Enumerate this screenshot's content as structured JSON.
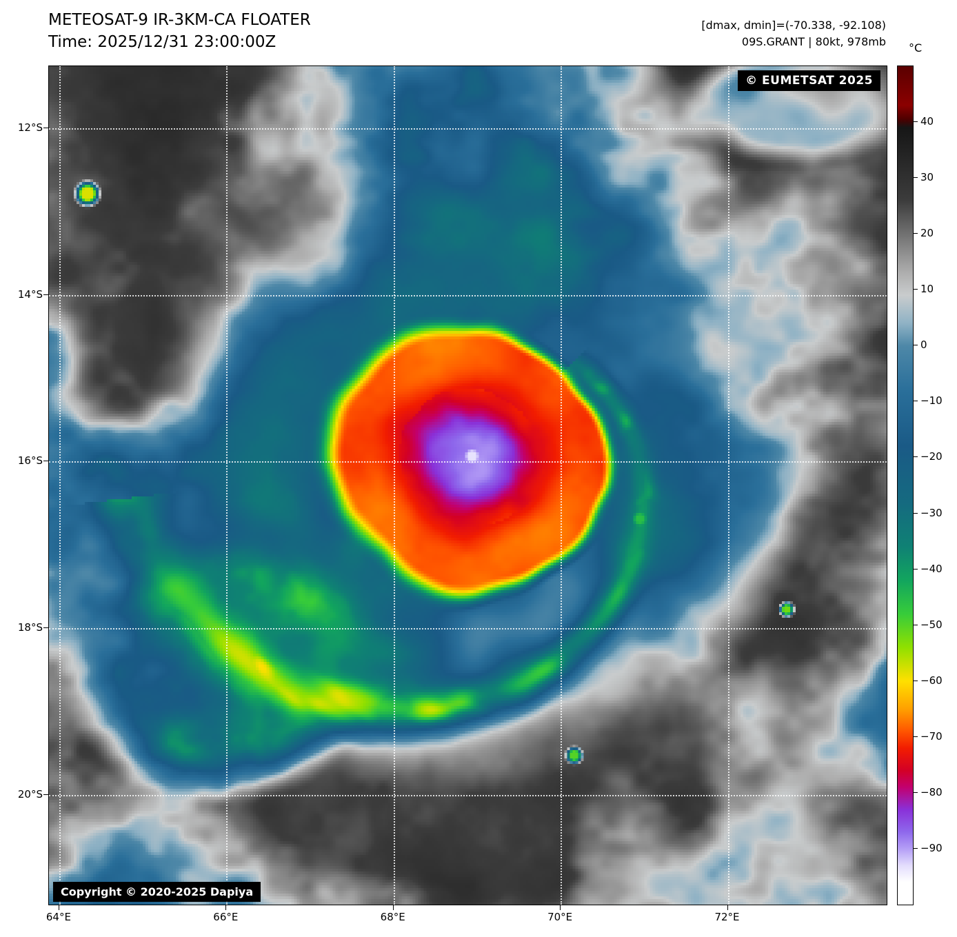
{
  "header": {
    "title": "METEOSAT-9 IR-3KM-CA FLOATER",
    "time_line": "Time: 2025/12/31 23:00:00Z",
    "dmax_dmin": "[dmax, dmin]=(-70.338, -92.108)",
    "storm_info": "09S.GRANT | 80kt, 978mb"
  },
  "map": {
    "eumetsat_badge": "© EUMETSAT 2025",
    "copyright_badge": "Copyright © 2020-2025 Dapiya",
    "lat_ticks": [
      {
        "label": "12°S",
        "lat": 12
      },
      {
        "label": "14°S",
        "lat": 14
      },
      {
        "label": "16°S",
        "lat": 16
      },
      {
        "label": "18°S",
        "lat": 18
      },
      {
        "label": "20°S",
        "lat": 20
      }
    ],
    "lon_ticks": [
      {
        "label": "64°E",
        "lon": 64
      },
      {
        "label": "66°E",
        "lon": 66
      },
      {
        "label": "68°E",
        "lon": 68
      },
      {
        "label": "70°E",
        "lon": 70
      },
      {
        "label": "72°E",
        "lon": 72
      }
    ]
  },
  "colorbar": {
    "unit": "°C",
    "ticks": [
      {
        "label": "40",
        "t": 40
      },
      {
        "label": "30",
        "t": 30
      },
      {
        "label": "20",
        "t": 20
      },
      {
        "label": "10",
        "t": 10
      },
      {
        "label": "0",
        "t": 0
      },
      {
        "label": "−10",
        "t": -10
      },
      {
        "label": "−20",
        "t": -20
      },
      {
        "label": "−30",
        "t": -30
      },
      {
        "label": "−40",
        "t": -40
      },
      {
        "label": "−50",
        "t": -50
      },
      {
        "label": "−60",
        "t": -60
      },
      {
        "label": "−70",
        "t": -70
      },
      {
        "label": "−80",
        "t": -80
      },
      {
        "label": "−90",
        "t": -90
      }
    ],
    "gradient": [
      {
        "t": 50,
        "color": "#5a0000"
      },
      {
        "t": 43,
        "color": "#8b0000"
      },
      {
        "t": 40.5,
        "color": "#4d0000"
      },
      {
        "t": 39,
        "color": "#161616"
      },
      {
        "t": 26,
        "color": "#3c3c3c"
      },
      {
        "t": 13,
        "color": "#aeaeae"
      },
      {
        "t": 9,
        "color": "#c9cccd"
      },
      {
        "t": 4,
        "color": "#8fb2c5"
      },
      {
        "t": 0,
        "color": "#4e88a8"
      },
      {
        "t": -8,
        "color": "#2a6f9a"
      },
      {
        "t": -18,
        "color": "#1a5a86"
      },
      {
        "t": -28,
        "color": "#156a80"
      },
      {
        "t": -36,
        "color": "#0f8174"
      },
      {
        "t": -42,
        "color": "#12a55e"
      },
      {
        "t": -48,
        "color": "#37cc3a"
      },
      {
        "t": -54,
        "color": "#90e000"
      },
      {
        "t": -60,
        "color": "#ffe000"
      },
      {
        "t": -65,
        "color": "#ffa000"
      },
      {
        "t": -69,
        "color": "#ff5500"
      },
      {
        "t": -72,
        "color": "#f21d00"
      },
      {
        "t": -76,
        "color": "#d30026"
      },
      {
        "t": -79,
        "color": "#c2006f"
      },
      {
        "t": -83,
        "color": "#8a30d8"
      },
      {
        "t": -87,
        "color": "#8e68ec"
      },
      {
        "t": -90,
        "color": "#b49ef6"
      },
      {
        "t": -93,
        "color": "#e3ddfd"
      },
      {
        "t": -96,
        "color": "#ffffff"
      },
      {
        "t": -100,
        "color": "#ffffff"
      }
    ]
  }
}
